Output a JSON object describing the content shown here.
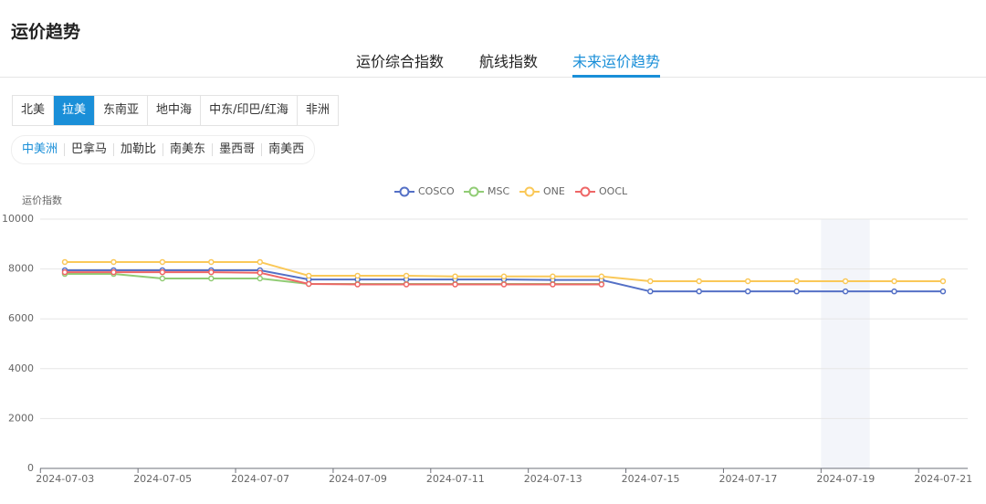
{
  "header": {
    "title": "运价趋势"
  },
  "tabs": [
    "运价综合指数",
    "航线指数",
    "未来运价趋势"
  ],
  "active_tab": 2,
  "regions": [
    "北美",
    "拉美",
    "东南亚",
    "地中海",
    "中东/印巴/红海",
    "非洲"
  ],
  "active_region": 1,
  "subregions": [
    "中美洲",
    "巴拿马",
    "加勒比",
    "南美东",
    "墨西哥",
    "南美西"
  ],
  "active_subregion": 0,
  "chart_data": {
    "type": "line",
    "y_label": "运价指数",
    "categories": [
      "2024-07-03",
      null,
      "2024-07-05",
      null,
      "2024-07-07",
      null,
      "2024-07-09",
      null,
      "2024-07-11",
      null,
      "2024-07-13",
      null,
      "2024-07-15",
      null,
      "2024-07-17",
      null,
      "2024-07-19",
      null,
      "2024-07-21"
    ],
    "series": [
      {
        "name": "COSCO",
        "color": "#5470c6",
        "values": [
          7950,
          7950,
          7950,
          7950,
          7950,
          7580,
          7580,
          7580,
          7580,
          7580,
          7560,
          7560,
          7100,
          7100,
          7100,
          7100,
          7100,
          7100,
          7100
        ]
      },
      {
        "name": "MSC",
        "color": "#91cc75",
        "values": [
          7800,
          7800,
          7620,
          7620,
          7620,
          7400,
          7400,
          7400,
          7400,
          7400,
          7400,
          7400,
          null,
          null,
          null,
          null,
          null,
          null,
          null
        ]
      },
      {
        "name": "ONE",
        "color": "#fac858",
        "values": [
          8280,
          8280,
          8280,
          8280,
          8280,
          7730,
          7730,
          7730,
          7700,
          7700,
          7700,
          7700,
          7510,
          7510,
          7510,
          7510,
          7510,
          7510,
          7510
        ]
      },
      {
        "name": "OOCL",
        "color": "#ee6666",
        "values": [
          7870,
          7870,
          7870,
          7870,
          7850,
          7400,
          7380,
          7380,
          7380,
          7380,
          7380,
          7380,
          null,
          null,
          null,
          null,
          null,
          null,
          null
        ]
      }
    ],
    "ylim": [
      0,
      10000
    ],
    "yticks": [
      0,
      2000,
      4000,
      6000,
      8000,
      10000
    ],
    "grid": true,
    "highlight_index": 16
  }
}
